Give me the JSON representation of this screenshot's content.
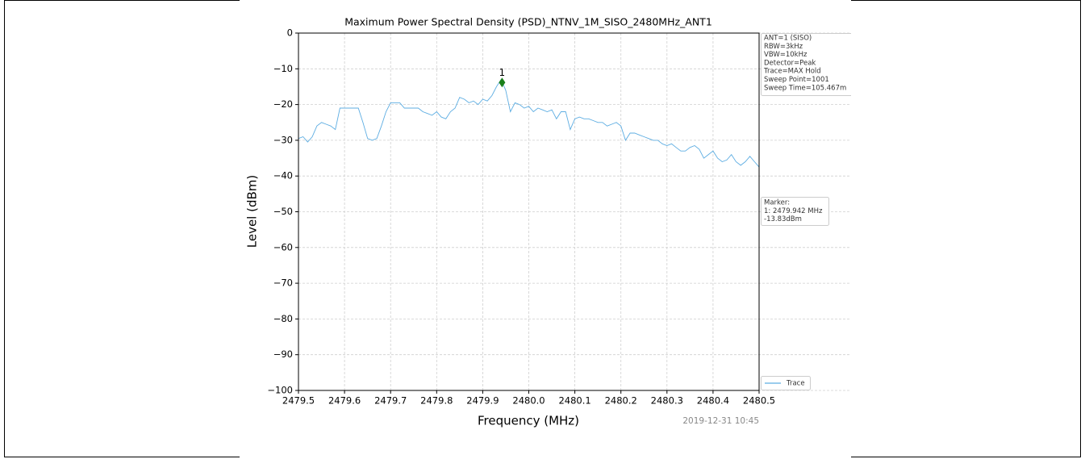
{
  "chart_data": {
    "type": "line",
    "title": "Maximum Power Spectral Density (PSD)_NTNV_1M_SISO_2480MHz_ANT1",
    "xlabel": "Frequency (MHz)",
    "ylabel": "Level (dBm)",
    "xlim": [
      2479.5,
      2480.5
    ],
    "xticks": [
      2479.5,
      2479.6,
      2479.7,
      2479.8,
      2479.9,
      {
        "value": 2480,
        "label": "2480.0"
      },
      2480.1,
      2480.2,
      2480.3,
      2480.4,
      2480.5
    ],
    "ylim": [
      -100,
      0
    ],
    "yticks": [
      {
        "value": -100,
        "label": "−100"
      },
      {
        "value": -90,
        "label": "−90"
      },
      {
        "value": -80,
        "label": "−80"
      },
      {
        "value": -70,
        "label": "−70"
      },
      {
        "value": -60,
        "label": "−60"
      },
      {
        "value": -50,
        "label": "−50"
      },
      {
        "value": -40,
        "label": "−40"
      },
      {
        "value": -30,
        "label": "−30"
      },
      {
        "value": -20,
        "label": "−20"
      },
      {
        "value": -10,
        "label": "−10"
      },
      0
    ],
    "grid": true,
    "legend": "lower right",
    "x": [
      2479.5,
      2479.51,
      2479.52,
      2479.53,
      2479.54,
      2479.55,
      2479.56,
      2479.57,
      2479.58,
      2479.59,
      2479.6,
      2479.61,
      2479.62,
      2479.63,
      2479.64,
      2479.65,
      2479.66,
      2479.67,
      2479.68,
      2479.69,
      2479.7,
      2479.71,
      2479.72,
      2479.73,
      2479.74,
      2479.75,
      2479.76,
      2479.77,
      2479.78,
      2479.79,
      2479.8,
      2479.81,
      2479.82,
      2479.83,
      2479.84,
      2479.85,
      2479.86,
      2479.87,
      2479.88,
      2479.89,
      2479.9,
      2479.91,
      2479.92,
      2479.93,
      2479.94,
      2479.95,
      2479.96,
      2479.97,
      2479.98,
      2479.99,
      2480,
      2480.01,
      2480.02,
      2480.03,
      2480.04,
      2480.05,
      2480.06,
      2480.07,
      2480.08,
      2480.09,
      2480.1,
      2480.11,
      2480.12,
      2480.13,
      2480.14,
      2480.15,
      2480.16,
      2480.17,
      2480.18,
      2480.19,
      2480.2,
      2480.21,
      2480.22,
      2480.23,
      2480.24,
      2480.25,
      2480.26,
      2480.27,
      2480.28,
      2480.29,
      2480.3,
      2480.31,
      2480.32,
      2480.33,
      2480.34,
      2480.35,
      2480.36,
      2480.37,
      2480.38,
      2480.39,
      2480.4,
      2480.41,
      2480.42,
      2480.43,
      2480.44,
      2480.45,
      2480.46,
      2480.47,
      2480.48,
      2480.49,
      2480.5
    ],
    "series": [
      {
        "name": "Trace",
        "color": "#5dade2",
        "values": [
          -29.5,
          -29,
          -30.5,
          -29,
          -26,
          -25,
          -25.5,
          -26,
          -27,
          -21,
          -21,
          -21,
          -21,
          -21,
          -25,
          -29.5,
          -30,
          -29.5,
          -26,
          -22,
          -19.5,
          -19.5,
          -19.5,
          -21,
          -21,
          -21,
          -21,
          -22,
          -22.5,
          -23,
          -22,
          -23.5,
          -24,
          -22,
          -21,
          -18,
          -18.5,
          -19.5,
          -19,
          -20,
          -18.5,
          -19,
          -17.5,
          -15,
          -13,
          -16,
          -22,
          -19.5,
          -20,
          -21,
          -20.5,
          -22,
          -21,
          -21.5,
          -22,
          -21.5,
          -24,
          -22,
          -22,
          -27,
          -24,
          -23.5,
          -24,
          -24,
          -24.5,
          -25,
          -25,
          -26,
          -25.5,
          -25,
          -26,
          -30,
          -28,
          -28,
          -28.5,
          -29,
          -29.5,
          -30,
          -30,
          -31,
          -31.5,
          -31,
          -32,
          -33,
          -33,
          -32,
          -31.5,
          -32.5,
          -35,
          -34,
          -33,
          -35,
          -36,
          -35.5,
          -34,
          -36,
          -37,
          -36,
          -34.5,
          -36,
          -37.5
        ]
      }
    ],
    "marker": {
      "label": "1",
      "x": 2479.942,
      "y": -13.83,
      "color": "#1a7f1a"
    },
    "settings_text": [
      "ANT=1 (SISO)",
      "RBW=3kHz",
      "VBW=10kHz",
      "Detector=Peak",
      "Trace=MAX Hold",
      "Sweep Point=1001",
      "Sweep Time=105.467m"
    ],
    "marker_text": [
      "Marker:",
      "1: 2479.942 MHz",
      "-13.83dBm"
    ],
    "timestamp": "2019-12-31 10:45"
  }
}
